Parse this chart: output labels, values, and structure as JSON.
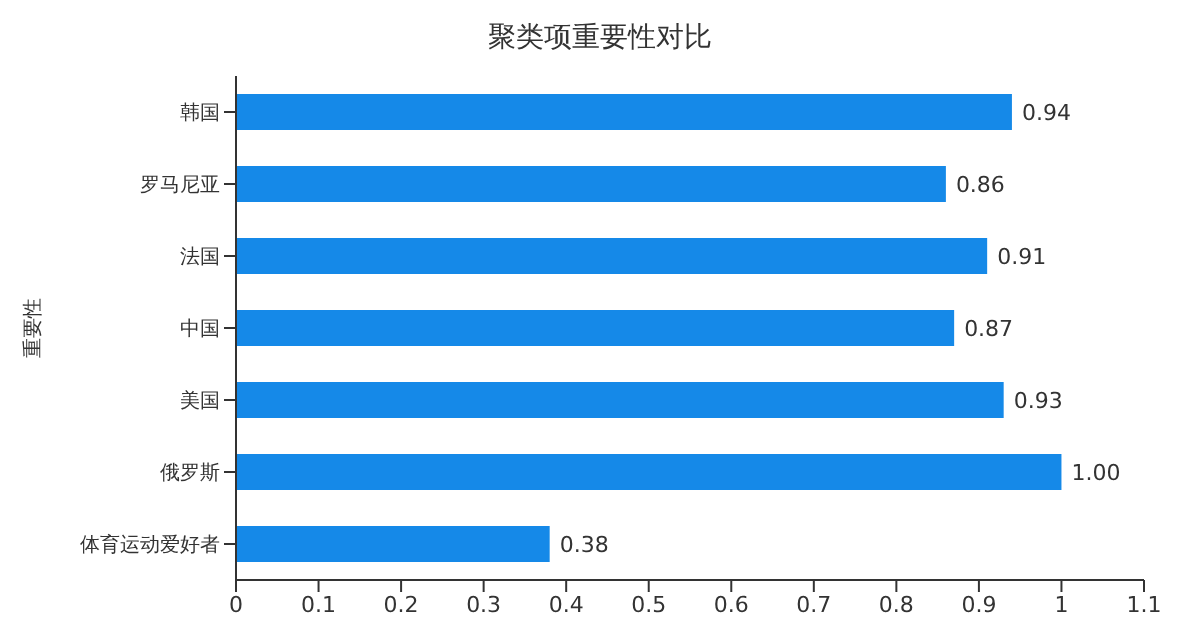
{
  "chart_data": {
    "type": "bar",
    "orientation": "horizontal",
    "title": "聚类项重要性对比",
    "ylabel": "重要性",
    "categories": [
      "韩国",
      "罗马尼亚",
      "法国",
      "中国",
      "美国",
      "俄罗斯",
      "体育运动爱好者"
    ],
    "values": [
      0.94,
      0.86,
      0.91,
      0.87,
      0.93,
      1.0,
      0.38
    ],
    "value_labels": [
      "0.94",
      "0.86",
      "0.91",
      "0.87",
      "0.93",
      "1.00",
      "0.38"
    ],
    "color": "#1589e8",
    "xlim": [
      0,
      1.1
    ],
    "xticks": [
      0,
      0.1,
      0.2,
      0.3,
      0.4,
      0.5,
      0.6,
      0.7,
      0.8,
      0.9,
      1,
      1.1
    ],
    "grid": false
  }
}
